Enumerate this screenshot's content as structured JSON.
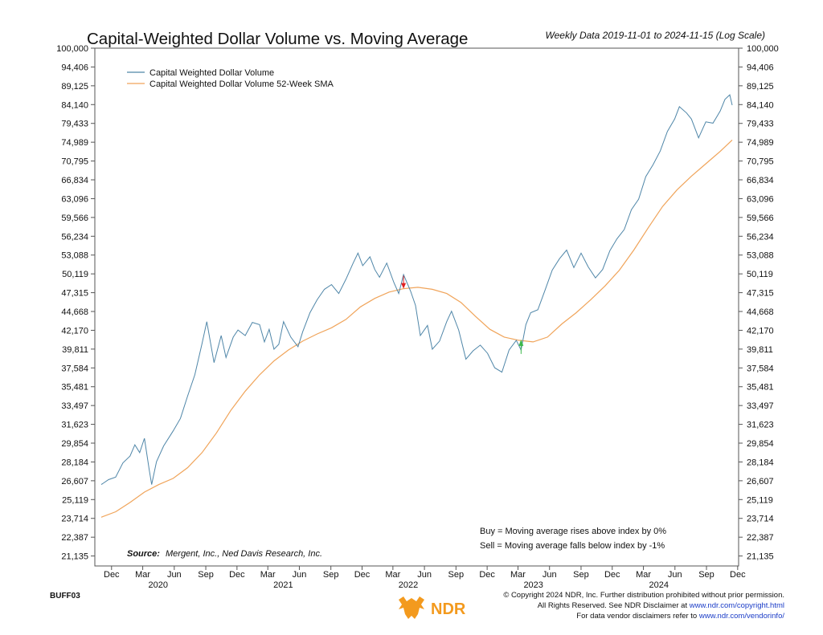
{
  "code": "BUFF03",
  "source_label": "Source:",
  "source_text": "Mergent, Inc., Ned Davis Research, Inc.",
  "buy_note": "Buy = Moving average rises above index by 0%",
  "sell_note": "Sell = Moving average falls below index by -1%",
  "copyright": {
    "line1": "© Copyright 2024 NDR, Inc. Further distribution prohibited without prior permission.",
    "line2_prefix": "All Rights Reserved. See NDR Disclaimer at ",
    "line2_link": "www.ndr.com/copyright.html",
    "line3_prefix": "For data vendor disclaimers refer to ",
    "line3_link": "www.ndr.com/vendorinfo/"
  },
  "logo_text": "NDR",
  "colors": {
    "index": "#4f86a8",
    "sma": "#f0a45a",
    "sell_arrow": "#e02020",
    "buy_arrow": "#3cb84a",
    "logo": "#f39a1e"
  },
  "chart_data": {
    "type": "line",
    "title": "Capital-Weighted Dollar Volume vs. Moving Average",
    "subtitle": "Weekly Data 2019-11-01 to 2024-11-15 (Log Scale)",
    "y_scale": "log",
    "ylim": [
      20500,
      100000
    ],
    "y_ticks": [
      "21,135",
      "22,387",
      "23,714",
      "25,119",
      "26,607",
      "28,184",
      "29,854",
      "31,623",
      "33,497",
      "35,481",
      "37,584",
      "39,811",
      "42,170",
      "44,668",
      "47,315",
      "50,119",
      "53,088",
      "56,234",
      "59,566",
      "63,096",
      "66,834",
      "70,795",
      "74,989",
      "79,433",
      "84,140",
      "89,125",
      "94,406",
      "100,000"
    ],
    "xlim": [
      "2019-11-01",
      "2024-11-15"
    ],
    "x_ticks": [
      {
        "date": "2019-12-01",
        "label": "Dec"
      },
      {
        "date": "2020-03-01",
        "label": "Mar"
      },
      {
        "date": "2020-06-01",
        "label": "Jun"
      },
      {
        "date": "2020-09-01",
        "label": "Sep"
      },
      {
        "date": "2020-12-01",
        "label": "Dec"
      },
      {
        "date": "2021-03-01",
        "label": "Mar"
      },
      {
        "date": "2021-06-01",
        "label": "Jun"
      },
      {
        "date": "2021-09-01",
        "label": "Sep"
      },
      {
        "date": "2021-12-01",
        "label": "Dec"
      },
      {
        "date": "2022-03-01",
        "label": "Mar"
      },
      {
        "date": "2022-06-01",
        "label": "Jun"
      },
      {
        "date": "2022-09-01",
        "label": "Sep"
      },
      {
        "date": "2022-12-01",
        "label": "Dec"
      },
      {
        "date": "2023-03-01",
        "label": "Mar"
      },
      {
        "date": "2023-06-01",
        "label": "Jun"
      },
      {
        "date": "2023-09-01",
        "label": "Sep"
      },
      {
        "date": "2023-12-01",
        "label": "Dec"
      },
      {
        "date": "2024-03-01",
        "label": "Mar"
      },
      {
        "date": "2024-06-01",
        "label": "Jun"
      },
      {
        "date": "2024-09-01",
        "label": "Sep"
      },
      {
        "date": "2024-12-01",
        "label": "Dec"
      }
    ],
    "year_labels": [
      {
        "date": "2020-04-15",
        "label": "2020"
      },
      {
        "date": "2021-04-15",
        "label": "2021"
      },
      {
        "date": "2022-04-15",
        "label": "2022"
      },
      {
        "date": "2023-04-15",
        "label": "2023"
      },
      {
        "date": "2024-04-15",
        "label": "2024"
      }
    ],
    "legend_position": "top-left",
    "series": [
      {
        "name": "Capital Weighted Dollar Volume",
        "points": [
          [
            "2019-11-01",
            26300
          ],
          [
            "2019-11-22",
            26700
          ],
          [
            "2019-12-13",
            26900
          ],
          [
            "2020-01-03",
            28100
          ],
          [
            "2020-01-24",
            28700
          ],
          [
            "2020-02-07",
            29700
          ],
          [
            "2020-02-21",
            29000
          ],
          [
            "2020-03-06",
            30300
          ],
          [
            "2020-03-20",
            27500
          ],
          [
            "2020-03-27",
            26300
          ],
          [
            "2020-04-10",
            28200
          ],
          [
            "2020-05-01",
            29600
          ],
          [
            "2020-05-29",
            31000
          ],
          [
            "2020-06-19",
            32200
          ],
          [
            "2020-07-10",
            34500
          ],
          [
            "2020-07-31",
            36800
          ],
          [
            "2020-08-21",
            40500
          ],
          [
            "2020-09-04",
            43300
          ],
          [
            "2020-09-25",
            38200
          ],
          [
            "2020-10-16",
            41500
          ],
          [
            "2020-10-30",
            38800
          ],
          [
            "2020-11-20",
            41300
          ],
          [
            "2020-12-04",
            42200
          ],
          [
            "2020-12-25",
            41500
          ],
          [
            "2021-01-15",
            43200
          ],
          [
            "2021-02-05",
            42900
          ],
          [
            "2021-02-19",
            40700
          ],
          [
            "2021-03-05",
            42300
          ],
          [
            "2021-03-19",
            39800
          ],
          [
            "2021-04-02",
            40400
          ],
          [
            "2021-04-16",
            43300
          ],
          [
            "2021-05-07",
            41300
          ],
          [
            "2021-05-28",
            40100
          ],
          [
            "2021-06-11",
            42000
          ],
          [
            "2021-07-02",
            44500
          ],
          [
            "2021-07-23",
            46300
          ],
          [
            "2021-08-13",
            47800
          ],
          [
            "2021-09-03",
            48500
          ],
          [
            "2021-09-24",
            47200
          ],
          [
            "2021-10-15",
            49300
          ],
          [
            "2021-11-05",
            51800
          ],
          [
            "2021-11-19",
            53400
          ],
          [
            "2021-12-03",
            51400
          ],
          [
            "2021-12-24",
            52800
          ],
          [
            "2022-01-07",
            50800
          ],
          [
            "2022-01-21",
            49600
          ],
          [
            "2022-02-11",
            51800
          ],
          [
            "2022-03-04",
            48800
          ],
          [
            "2022-03-18",
            47200
          ],
          [
            "2022-04-01",
            50000
          ],
          [
            "2022-04-22",
            47500
          ],
          [
            "2022-05-06",
            45500
          ],
          [
            "2022-05-20",
            41500
          ],
          [
            "2022-06-10",
            42800
          ],
          [
            "2022-06-24",
            39800
          ],
          [
            "2022-07-15",
            40800
          ],
          [
            "2022-08-05",
            43300
          ],
          [
            "2022-08-19",
            44700
          ],
          [
            "2022-09-09",
            42200
          ],
          [
            "2022-09-30",
            38600
          ],
          [
            "2022-10-21",
            39600
          ],
          [
            "2022-11-11",
            40300
          ],
          [
            "2022-12-02",
            39300
          ],
          [
            "2022-12-23",
            37600
          ],
          [
            "2023-01-13",
            37100
          ],
          [
            "2023-02-03",
            39700
          ],
          [
            "2023-02-24",
            40900
          ],
          [
            "2023-03-10",
            39700
          ],
          [
            "2023-03-24",
            42900
          ],
          [
            "2023-04-07",
            44500
          ],
          [
            "2023-04-28",
            44900
          ],
          [
            "2023-05-19",
            47700
          ],
          [
            "2023-06-09",
            50700
          ],
          [
            "2023-06-30",
            52500
          ],
          [
            "2023-07-21",
            53900
          ],
          [
            "2023-08-11",
            51100
          ],
          [
            "2023-09-01",
            53400
          ],
          [
            "2023-09-22",
            51200
          ],
          [
            "2023-10-13",
            49500
          ],
          [
            "2023-11-03",
            50800
          ],
          [
            "2023-11-24",
            53800
          ],
          [
            "2023-12-15",
            55800
          ],
          [
            "2024-01-05",
            57400
          ],
          [
            "2024-01-26",
            61000
          ],
          [
            "2024-02-16",
            63000
          ],
          [
            "2024-03-08",
            67500
          ],
          [
            "2024-03-29",
            70000
          ],
          [
            "2024-04-19",
            73000
          ],
          [
            "2024-05-10",
            77500
          ],
          [
            "2024-05-31",
            80500
          ],
          [
            "2024-06-14",
            83600
          ],
          [
            "2024-07-05",
            82000
          ],
          [
            "2024-07-19",
            80500
          ],
          [
            "2024-08-09",
            76000
          ],
          [
            "2024-08-30",
            79800
          ],
          [
            "2024-09-20",
            79500
          ],
          [
            "2024-10-11",
            82500
          ],
          [
            "2024-10-25",
            85500
          ],
          [
            "2024-11-08",
            86700
          ],
          [
            "2024-11-15",
            84000
          ]
        ]
      },
      {
        "name": "Capital Weighted Dollar Volume 52-Week SMA",
        "points": [
          [
            "2019-11-01",
            23800
          ],
          [
            "2019-12-13",
            24200
          ],
          [
            "2020-01-24",
            24900
          ],
          [
            "2020-03-06",
            25700
          ],
          [
            "2020-04-17",
            26300
          ],
          [
            "2020-05-29",
            26800
          ],
          [
            "2020-07-10",
            27700
          ],
          [
            "2020-08-21",
            29000
          ],
          [
            "2020-10-02",
            30800
          ],
          [
            "2020-11-13",
            33000
          ],
          [
            "2020-12-25",
            35000
          ],
          [
            "2021-02-05",
            36800
          ],
          [
            "2021-03-19",
            38400
          ],
          [
            "2021-04-30",
            39700
          ],
          [
            "2021-06-11",
            40800
          ],
          [
            "2021-07-23",
            41700
          ],
          [
            "2021-09-03",
            42500
          ],
          [
            "2021-10-15",
            43600
          ],
          [
            "2021-11-26",
            45300
          ],
          [
            "2022-01-07",
            46500
          ],
          [
            "2022-02-18",
            47400
          ],
          [
            "2022-04-01",
            47900
          ],
          [
            "2022-05-13",
            48100
          ],
          [
            "2022-06-24",
            47800
          ],
          [
            "2022-08-05",
            47200
          ],
          [
            "2022-09-16",
            45900
          ],
          [
            "2022-10-28",
            44000
          ],
          [
            "2022-12-09",
            42300
          ],
          [
            "2023-01-20",
            41300
          ],
          [
            "2023-03-03",
            40900
          ],
          [
            "2023-04-14",
            40700
          ],
          [
            "2023-05-26",
            41300
          ],
          [
            "2023-07-07",
            43000
          ],
          [
            "2023-08-18",
            44500
          ],
          [
            "2023-09-29",
            46300
          ],
          [
            "2023-11-10",
            48300
          ],
          [
            "2023-12-22",
            50700
          ],
          [
            "2024-02-02",
            53900
          ],
          [
            "2024-03-15",
            57700
          ],
          [
            "2024-04-26",
            61600
          ],
          [
            "2024-06-07",
            64800
          ],
          [
            "2024-07-19",
            67600
          ],
          [
            "2024-08-30",
            70200
          ],
          [
            "2024-10-11",
            72900
          ],
          [
            "2024-11-15",
            75500
          ]
        ]
      }
    ],
    "signals": [
      {
        "type": "sell",
        "date": "2022-04-01",
        "value": 47900
      },
      {
        "type": "buy",
        "date": "2023-03-10",
        "value": 41000
      }
    ]
  }
}
